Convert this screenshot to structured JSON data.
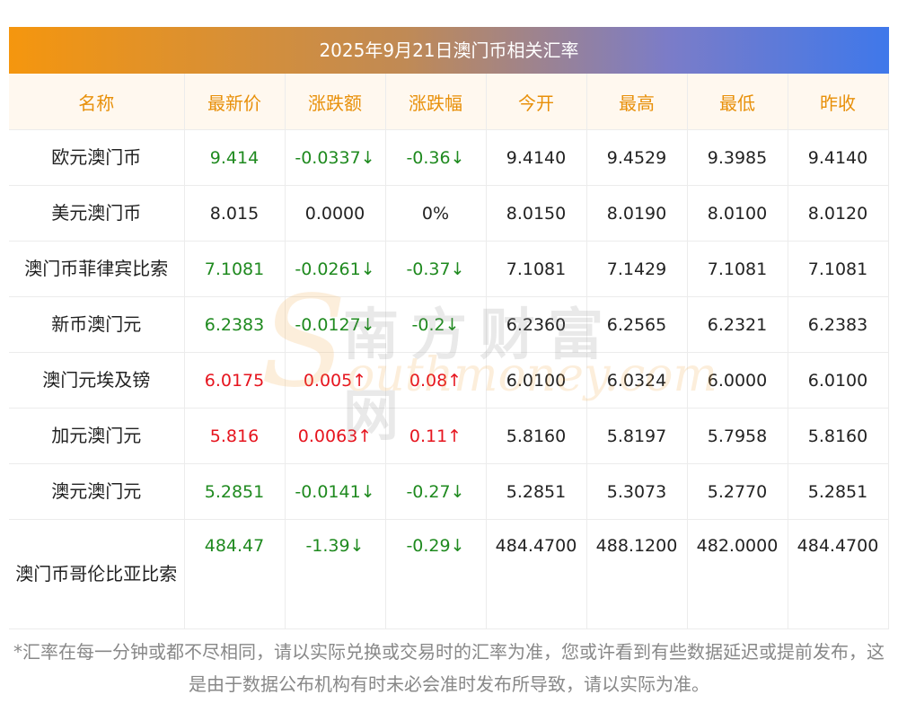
{
  "title": "2025年9月21日澳门币相关汇率",
  "headers": [
    "名称",
    "最新价",
    "涨跌额",
    "涨跌幅",
    "今开",
    "最高",
    "最低",
    "昨收"
  ],
  "rows": [
    {
      "name": "欧元澳门币",
      "latest": "9.414",
      "change": "-0.0337↓",
      "pct": "-0.36↓",
      "open": "9.4140",
      "high": "9.4529",
      "low": "9.3985",
      "prev": "9.4140",
      "trend": "down"
    },
    {
      "name": "美元澳门币",
      "latest": "8.015",
      "change": "0.0000",
      "pct": "0%",
      "open": "8.0150",
      "high": "8.0190",
      "low": "8.0100",
      "prev": "8.0120",
      "trend": "flat"
    },
    {
      "name": "澳门币菲律宾比索",
      "latest": "7.1081",
      "change": "-0.0261↓",
      "pct": "-0.37↓",
      "open": "7.1081",
      "high": "7.1429",
      "low": "7.1081",
      "prev": "7.1081",
      "trend": "down"
    },
    {
      "name": "新币澳门元",
      "latest": "6.2383",
      "change": "-0.0127↓",
      "pct": "-0.2↓",
      "open": "6.2360",
      "high": "6.2565",
      "low": "6.2321",
      "prev": "6.2383",
      "trend": "down"
    },
    {
      "name": "澳门元埃及镑",
      "latest": "6.0175",
      "change": "0.005↑",
      "pct": "0.08↑",
      "open": "6.0100",
      "high": "6.0324",
      "low": "6.0000",
      "prev": "6.0100",
      "trend": "up"
    },
    {
      "name": "加元澳门元",
      "latest": "5.816",
      "change": "0.0063↑",
      "pct": "0.11↑",
      "open": "5.8160",
      "high": "5.8197",
      "low": "5.7958",
      "prev": "5.8160",
      "trend": "up"
    },
    {
      "name": "澳元澳门元",
      "latest": "5.2851",
      "change": "-0.0141↓",
      "pct": "-0.27↓",
      "open": "5.2851",
      "high": "5.3073",
      "low": "5.2770",
      "prev": "5.2851",
      "trend": "down"
    },
    {
      "name": "澳门币哥伦比亚比索",
      "latest": "484.47",
      "change": "-1.39↓",
      "pct": "-0.29↓",
      "open": "484.4700",
      "high": "488.1200",
      "low": "482.0000",
      "prev": "484.4700",
      "trend": "down"
    }
  ],
  "watermark": {
    "main": "南方财富网",
    "sub": "outhmoney.com",
    "logo_letter": "S"
  },
  "footnote": "*汇率在每一分钟或都不尽相同，请以实际兑换或交易时的汇率为准，您或许看到有些数据延迟或提前发布，这是由于数据公布机构有时未必会准时发布所导致，请以实际为准。",
  "colors": {
    "up": "#e6141e",
    "down": "#1f8a1f",
    "header_text": "#e8900a",
    "header_bg": "#fff8ef"
  }
}
